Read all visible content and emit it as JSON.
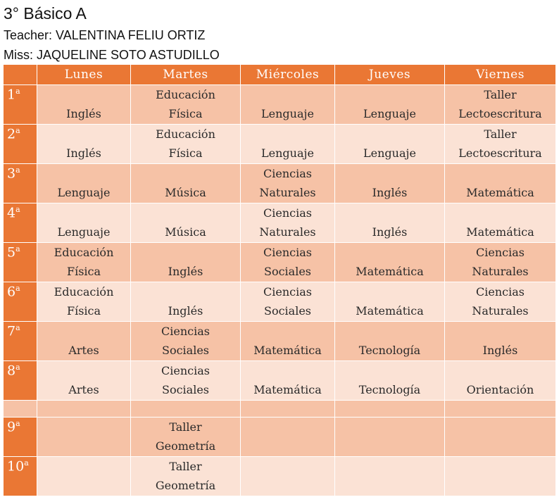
{
  "header": {
    "title": "3° Básico A",
    "teacher": "Teacher: VALENTINA FELIU ORTIZ",
    "miss": "Miss: JAQUELINE SOTO ASTUDILLO"
  },
  "schedule": {
    "days": [
      "Lunes",
      "Martes",
      "Miércoles",
      "Jueves",
      "Viernes"
    ],
    "rows": [
      {
        "num": "1",
        "sup": "a",
        "cells": [
          [
            "Inglés"
          ],
          [
            "Educación",
            "Física"
          ],
          [
            "Lenguaje"
          ],
          [
            "Lenguaje"
          ],
          [
            "Taller",
            "Lectoescritura"
          ]
        ]
      },
      {
        "num": "2",
        "sup": "a",
        "cells": [
          [
            "Inglés"
          ],
          [
            "Educación",
            "Física"
          ],
          [
            "Lenguaje"
          ],
          [
            "Lenguaje"
          ],
          [
            "Taller",
            "Lectoescritura"
          ]
        ]
      },
      {
        "num": "3",
        "sup": "a",
        "cells": [
          [
            "Lenguaje"
          ],
          [
            "Música"
          ],
          [
            "Ciencias",
            "Naturales"
          ],
          [
            "Inglés"
          ],
          [
            "Matemática"
          ]
        ]
      },
      {
        "num": "4",
        "sup": "a",
        "cells": [
          [
            "Lenguaje"
          ],
          [
            "Música"
          ],
          [
            "Ciencias",
            "Naturales"
          ],
          [
            "Inglés"
          ],
          [
            "Matemática"
          ]
        ]
      },
      {
        "num": "5",
        "sup": "a",
        "cells": [
          [
            "Educación",
            "Física"
          ],
          [
            "Inglés"
          ],
          [
            "Ciencias",
            "Sociales"
          ],
          [
            "Matemática"
          ],
          [
            "Ciencias",
            "Naturales"
          ]
        ]
      },
      {
        "num": "6",
        "sup": "a",
        "cells": [
          [
            "Educación",
            "Física"
          ],
          [
            "Inglés"
          ],
          [
            "Ciencias",
            "Sociales"
          ],
          [
            "Matemática"
          ],
          [
            "Ciencias",
            "Naturales"
          ]
        ]
      },
      {
        "num": "7",
        "sup": "a",
        "cells": [
          [
            "Artes"
          ],
          [
            "Ciencias",
            "Sociales"
          ],
          [
            "Matemática"
          ],
          [
            "Tecnología"
          ],
          [
            "Inglés"
          ]
        ]
      },
      {
        "num": "8",
        "sup": "a",
        "cells": [
          [
            "Artes"
          ],
          [
            "Ciencias",
            "Sociales"
          ],
          [
            "Matemática"
          ],
          [
            "Tecnología"
          ],
          [
            "Orientación"
          ]
        ]
      },
      {
        "gap": true
      },
      {
        "num": "9",
        "sup": "a",
        "cells": [
          [],
          [
            "Taller",
            "Geometría"
          ],
          [],
          [],
          []
        ]
      },
      {
        "num": "10",
        "sup": "a",
        "cells": [
          [],
          [
            "Taller",
            "Geometría"
          ],
          [],
          [],
          []
        ]
      }
    ]
  }
}
